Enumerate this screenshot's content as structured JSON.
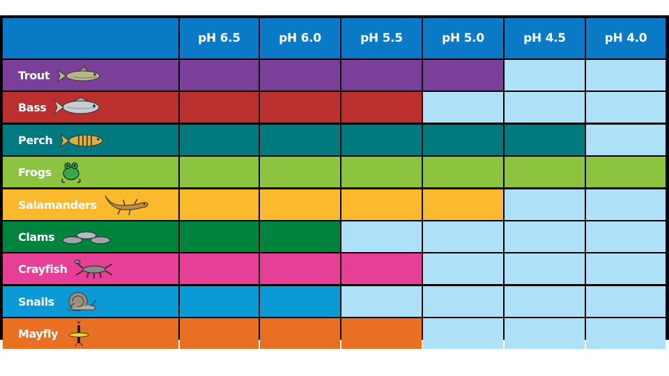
{
  "chart_data": {
    "type": "table",
    "title": "",
    "columns": [
      "pH 6.5",
      "pH 6.0",
      "pH 5.5",
      "pH 5.0",
      "pH 4.5",
      "pH 4.0"
    ],
    "rows": [
      {
        "name": "Trout",
        "icon": "trout-icon",
        "color": "#7a3f98",
        "tolerates": [
          true,
          true,
          true,
          true,
          false,
          false
        ]
      },
      {
        "name": "Bass",
        "icon": "bass-icon",
        "color": "#bc2f2f",
        "tolerates": [
          true,
          true,
          true,
          false,
          false,
          false
        ]
      },
      {
        "name": "Perch",
        "icon": "perch-icon",
        "color": "#007a7e",
        "tolerates": [
          true,
          true,
          true,
          true,
          true,
          false
        ]
      },
      {
        "name": "Frogs",
        "icon": "frog-icon",
        "color": "#8cc43f",
        "tolerates": [
          true,
          true,
          true,
          true,
          true,
          true
        ]
      },
      {
        "name": "Salamanders",
        "icon": "salamander-icon",
        "color": "#fbb92e",
        "tolerates": [
          true,
          true,
          true,
          true,
          false,
          false
        ]
      },
      {
        "name": "Clams",
        "icon": "clams-icon",
        "color": "#00843d",
        "tolerates": [
          true,
          true,
          false,
          false,
          false,
          false
        ]
      },
      {
        "name": "Crayfish",
        "icon": "crayfish-icon",
        "color": "#e53f96",
        "tolerates": [
          true,
          true,
          true,
          false,
          false,
          false
        ]
      },
      {
        "name": "Snails",
        "icon": "snail-icon",
        "color": "#0a9bd6",
        "tolerates": [
          true,
          true,
          false,
          false,
          false,
          false
        ]
      },
      {
        "name": "Mayfly",
        "icon": "mayfly-icon",
        "color": "#e96f23",
        "tolerates": [
          true,
          true,
          true,
          false,
          false,
          false
        ]
      }
    ],
    "header_color": "#0a79c6",
    "empty_color": "#aee0f8",
    "border_color": "#ffffff"
  }
}
